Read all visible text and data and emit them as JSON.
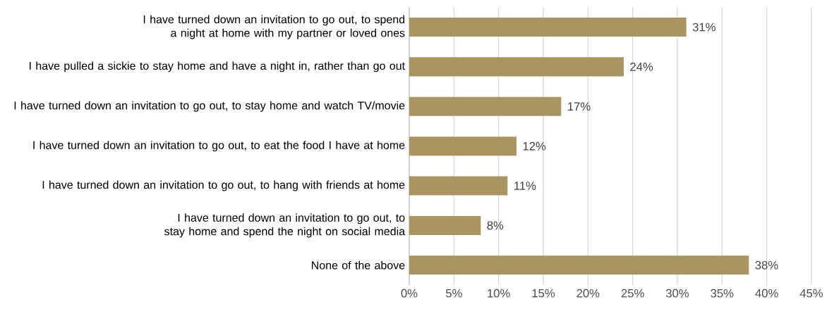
{
  "chart_data": {
    "type": "bar",
    "orientation": "horizontal",
    "categories": [
      "I have turned down an invitation to go out, to spend a night at home with my partner or loved ones",
      "I have pulled a sickie to stay home and have a night in, rather than go out",
      "I have turned down an invitation to go out, to stay home and watch TV/movie",
      "I have turned down an invitation to go out, to eat the food I have at home",
      "I have turned down an invitation to go out, to hang with friends at home",
      "I have turned down an invitation to go out, to stay home and spend the night on social media",
      "None of the above"
    ],
    "values": [
      31,
      24,
      17,
      12,
      11,
      8,
      38
    ],
    "value_labels": [
      "31%",
      "24%",
      "17%",
      "12%",
      "11%",
      "8%",
      "38%"
    ],
    "color": "#a8955f",
    "xlim": [
      0,
      45
    ],
    "xticks": [
      {
        "value": 0,
        "label": "0%"
      },
      {
        "value": 5,
        "label": "5%"
      },
      {
        "value": 10,
        "label": "10%"
      },
      {
        "value": 15,
        "label": "15%"
      },
      {
        "value": 20,
        "label": "20%"
      },
      {
        "value": 25,
        "label": "25%"
      },
      {
        "value": 30,
        "label": "30%"
      },
      {
        "value": 35,
        "label": "35%"
      },
      {
        "value": 40,
        "label": "40%"
      },
      {
        "value": 45,
        "label": "45%"
      }
    ],
    "grid": "x"
  }
}
